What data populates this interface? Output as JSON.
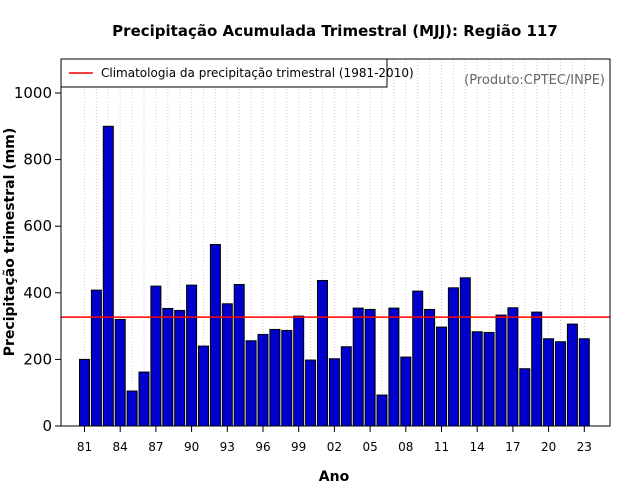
{
  "chart_data": {
    "type": "bar",
    "title": "Precipitação Acumulada Trimestral (MJJ): Região 117",
    "xlabel": "Ano",
    "ylabel": "Precipitação trimestral (mm)",
    "watermark": "(Produto:CPTEC/INPE)",
    "legend": {
      "label": "Climatologia da precipitação trimestral (1981-2010)",
      "position": "top-left"
    },
    "ylim": [
      0,
      1100
    ],
    "yticks": [
      0,
      200,
      400,
      600,
      800,
      1000
    ],
    "xtick_labels": [
      "81",
      "84",
      "87",
      "90",
      "93",
      "96",
      "99",
      "02",
      "05",
      "08",
      "11",
      "14",
      "17",
      "20",
      "23"
    ],
    "climatology": 327,
    "grid": "vertical dotted",
    "years": [
      1981,
      1982,
      1983,
      1984,
      1985,
      1986,
      1987,
      1988,
      1989,
      1990,
      1991,
      1992,
      1993,
      1994,
      1995,
      1996,
      1997,
      1998,
      1999,
      2000,
      2001,
      2002,
      2003,
      2004,
      2005,
      2006,
      2007,
      2008,
      2009,
      2010,
      2011,
      2012,
      2013,
      2014,
      2015,
      2016,
      2017,
      2018,
      2019,
      2020,
      2021,
      2022,
      2023
    ],
    "values": [
      200,
      408,
      900,
      320,
      105,
      162,
      420,
      353,
      347,
      423,
      240,
      545,
      367,
      425,
      256,
      275,
      290,
      287,
      330,
      198,
      437,
      202,
      238,
      354,
      350,
      93,
      354,
      207,
      405,
      350,
      297,
      415,
      445,
      283,
      281,
      333,
      355,
      172,
      342,
      262,
      253,
      306,
      262
    ],
    "colors": {
      "bar_fill": "#0000CD",
      "bar_stroke": "#000000",
      "climatology_line": "#FF0000",
      "grid": "#CCCCCC",
      "watermark": "#666666"
    }
  }
}
